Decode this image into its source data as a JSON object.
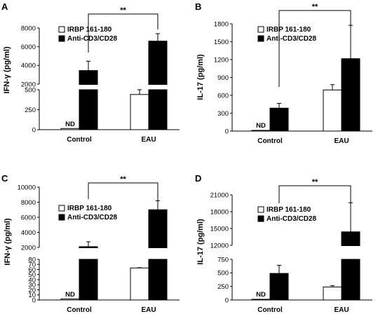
{
  "colors": {
    "filled": "#000000",
    "open": "#ffffff",
    "stroke": "#000000"
  },
  "chart_data": [
    {
      "type": "bar",
      "panel": "A",
      "ylabel": "IFN-γ (pg/ml)",
      "categories": [
        "Control",
        "EAU"
      ],
      "series": [
        {
          "name": "IRBP 161-180",
          "values": [
            15,
            440
          ],
          "errors": [
            0,
            60
          ]
        },
        {
          "name": "Anti-CD3/CD28",
          "values": [
            3450,
            6600
          ],
          "errors": [
            1000,
            800
          ]
        }
      ],
      "axis_break": {
        "lower": {
          "range": [
            0,
            500
          ],
          "ticks": [
            "0",
            "250",
            "500"
          ]
        },
        "upper": {
          "range": [
            2000,
            8000
          ],
          "ticks": [
            "2000",
            "4000",
            "6000",
            "8000"
          ]
        }
      },
      "annotations": {
        "control_irbp": "ND",
        "significance": "**"
      },
      "legend_placement": "top-left"
    },
    {
      "type": "bar",
      "panel": "B",
      "ylabel": "IL-17 (pg/ml)",
      "categories": [
        "Control",
        "EAU"
      ],
      "series": [
        {
          "name": "IRBP 161-180",
          "values": [
            10,
            690
          ],
          "errors": [
            0,
            90
          ]
        },
        {
          "name": "Anti-CD3/CD28",
          "values": [
            385,
            1215
          ],
          "errors": [
            80,
            560
          ]
        }
      ],
      "axis": {
        "range": [
          0,
          1800
        ],
        "ticks": [
          "0",
          "300",
          "600",
          "900",
          "1200",
          "1500",
          "1800"
        ]
      },
      "annotations": {
        "control_irbp": "ND",
        "significance": "**"
      },
      "legend_placement": "top-left"
    },
    {
      "type": "bar",
      "panel": "C",
      "ylabel": "IFN-γ (pg/ml)",
      "categories": [
        "Control",
        "EAU"
      ],
      "series": [
        {
          "name": "IRBP 161-180",
          "values": [
            2,
            63
          ],
          "errors": [
            0,
            0.6
          ]
        },
        {
          "name": "Anti-CD3/CD28",
          "values": [
            2100,
            7000
          ],
          "errors": [
            650,
            1200
          ]
        }
      ],
      "axis_break": {
        "lower": {
          "range": [
            0,
            80
          ],
          "ticks": [
            "0",
            "10",
            "20",
            "30",
            "40",
            "50",
            "60",
            "70",
            "80"
          ]
        },
        "upper": {
          "range": [
            2000,
            10000
          ],
          "ticks": [
            "2000",
            "4000",
            "6000",
            "8000",
            "10000"
          ]
        }
      },
      "annotations": {
        "control_irbp": "ND",
        "significance": "**"
      },
      "legend_placement": "top-left"
    },
    {
      "type": "bar",
      "panel": "D",
      "ylabel": "IL-17 (pg/ml)",
      "categories": [
        "Control",
        "EAU"
      ],
      "series": [
        {
          "name": "IRBP 161-180",
          "values": [
            8,
            240
          ],
          "errors": [
            0,
            25
          ]
        },
        {
          "name": "Anti-CD3/CD28",
          "values": [
            490,
            14400
          ],
          "errors": [
            150,
            5200
          ]
        }
      ],
      "axis_break": {
        "lower": {
          "range": [
            0,
            750
          ],
          "ticks": [
            "0",
            "250",
            "500",
            "750"
          ]
        },
        "upper": {
          "range": [
            12000,
            21000
          ],
          "ticks": [
            "12000",
            "15000",
            "18000",
            "21000"
          ]
        }
      },
      "annotations": {
        "control_irbp": "ND",
        "significance": "**"
      },
      "legend_placement": "top-left"
    }
  ]
}
